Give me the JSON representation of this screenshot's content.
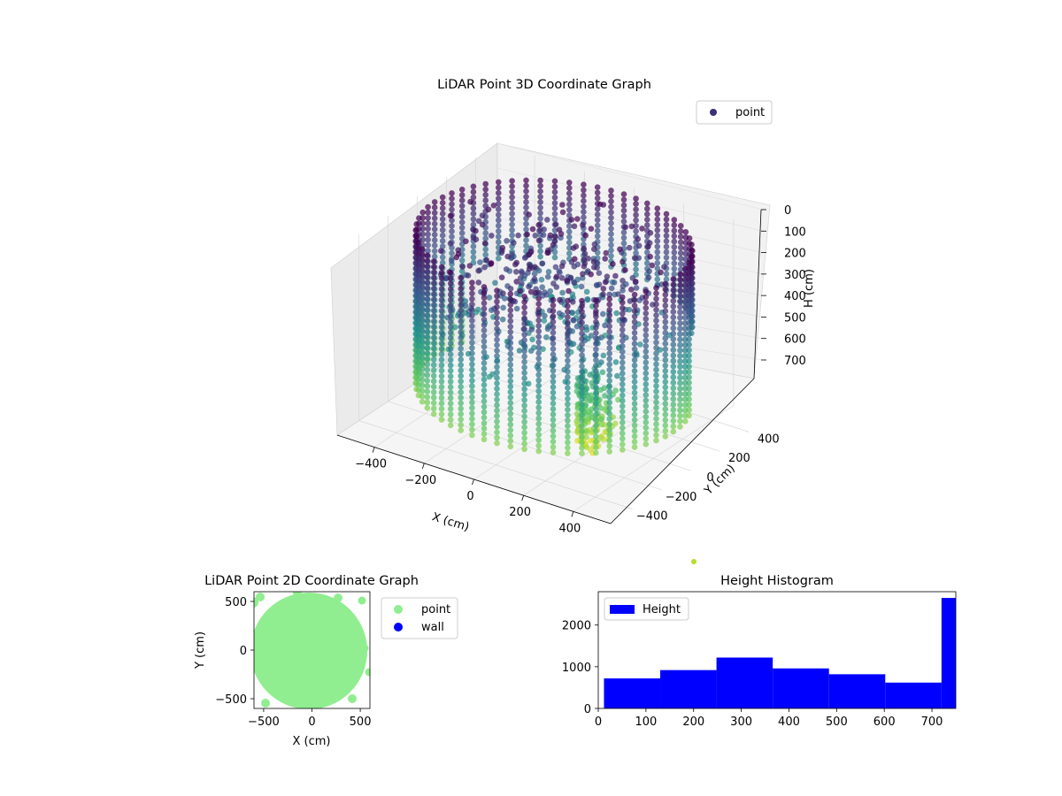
{
  "chart_data": [
    {
      "type": "scatter",
      "projection": "3d",
      "title": "LiDAR Point 3D Coordinate Graph",
      "xlabel": "X (cm)",
      "ylabel": "Y (cm)",
      "zlabel": "H (cm)",
      "xlim": [
        -550,
        550
      ],
      "ylim": [
        -550,
        550
      ],
      "zlim": [
        0,
        750
      ],
      "z_inverted": true,
      "xticks": [
        "−400",
        "−200",
        "0",
        "200",
        "400"
      ],
      "yticks": [
        "−400",
        "−200",
        "0",
        "200",
        "400"
      ],
      "zticks": [
        "0",
        "100",
        "200",
        "300",
        "400",
        "500",
        "600",
        "700"
      ],
      "legend": {
        "placement": "top-right",
        "entries": [
          {
            "label": "point",
            "color": "#3b2f7a"
          }
        ]
      },
      "colormap": "viridis",
      "series": [
        {
          "name": "point",
          "description_wall_radius": 480,
          "height_range": [
            0,
            740
          ]
        }
      ],
      "grid": true
    },
    {
      "type": "scatter",
      "title": "LiDAR Point 2D Coordinate Graph",
      "xlabel": "X (cm)",
      "ylabel": "Y (cm)",
      "xlim": [
        -600,
        600
      ],
      "ylim": [
        -600,
        600
      ],
      "xticks": [
        "−500",
        "0",
        "500"
      ],
      "yticks": [
        "−500",
        "0",
        "500"
      ],
      "legend": {
        "placement": "outside-right",
        "entries": [
          {
            "label": "point",
            "color": "#90ee90"
          },
          {
            "label": "wall",
            "color": "#0000ff"
          }
        ]
      },
      "series": [
        {
          "name": "point",
          "color": "#90ee90",
          "approx_radius": 560
        }
      ]
    },
    {
      "type": "bar",
      "title": "Height Histogram",
      "xlabel": "",
      "ylabel": "",
      "xlim": [
        0,
        750
      ],
      "ylim": [
        0,
        2800
      ],
      "xticks": [
        "0",
        "100",
        "200",
        "300",
        "400",
        "500",
        "600",
        "700"
      ],
      "yticks": [
        "0",
        "1000",
        "2000"
      ],
      "bin_edges": [
        12,
        130,
        248,
        366,
        484,
        602,
        720,
        760
      ],
      "values": [
        720,
        920,
        1220,
        960,
        820,
        620,
        2650
      ],
      "color": "#0000ff",
      "legend": {
        "placement": "top-left",
        "entries": [
          {
            "label": "Height",
            "color": "#0000ff"
          }
        ]
      }
    }
  ]
}
